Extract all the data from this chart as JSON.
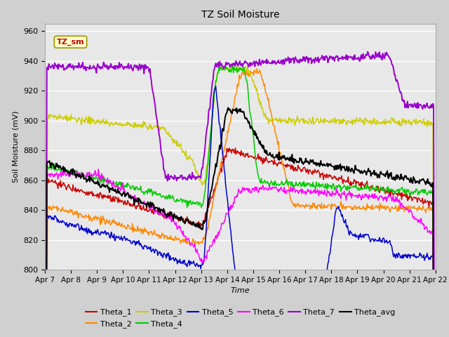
{
  "title": "TZ Soil Moisture",
  "xlabel": "Time",
  "ylabel": "Soil Moisture (mV)",
  "ylim": [
    800,
    965
  ],
  "yticks": [
    800,
    820,
    840,
    860,
    880,
    900,
    920,
    940,
    960
  ],
  "xtick_labels": [
    "Apr 7",
    "Apr 8",
    "Apr 9",
    "Apr 10",
    "Apr 11",
    "Apr 12",
    "Apr 13",
    "Apr 14",
    "Apr 15",
    "Apr 16",
    "Apr 17",
    "Apr 18",
    "Apr 19",
    "Apr 20",
    "Apr 21",
    "Apr 22"
  ],
  "legend_label": "TZ_sm",
  "colors": {
    "Theta_1": "#cc0000",
    "Theta_2": "#ff8800",
    "Theta_3": "#cccc00",
    "Theta_4": "#00cc00",
    "Theta_5": "#0000cc",
    "Theta_6": "#ff00ff",
    "Theta_7": "#9900cc",
    "Theta_avg": "#000000"
  },
  "fig_bg": "#d0d0d0",
  "axes_bg": "#e8e8e8",
  "grid_color": "#ffffff"
}
